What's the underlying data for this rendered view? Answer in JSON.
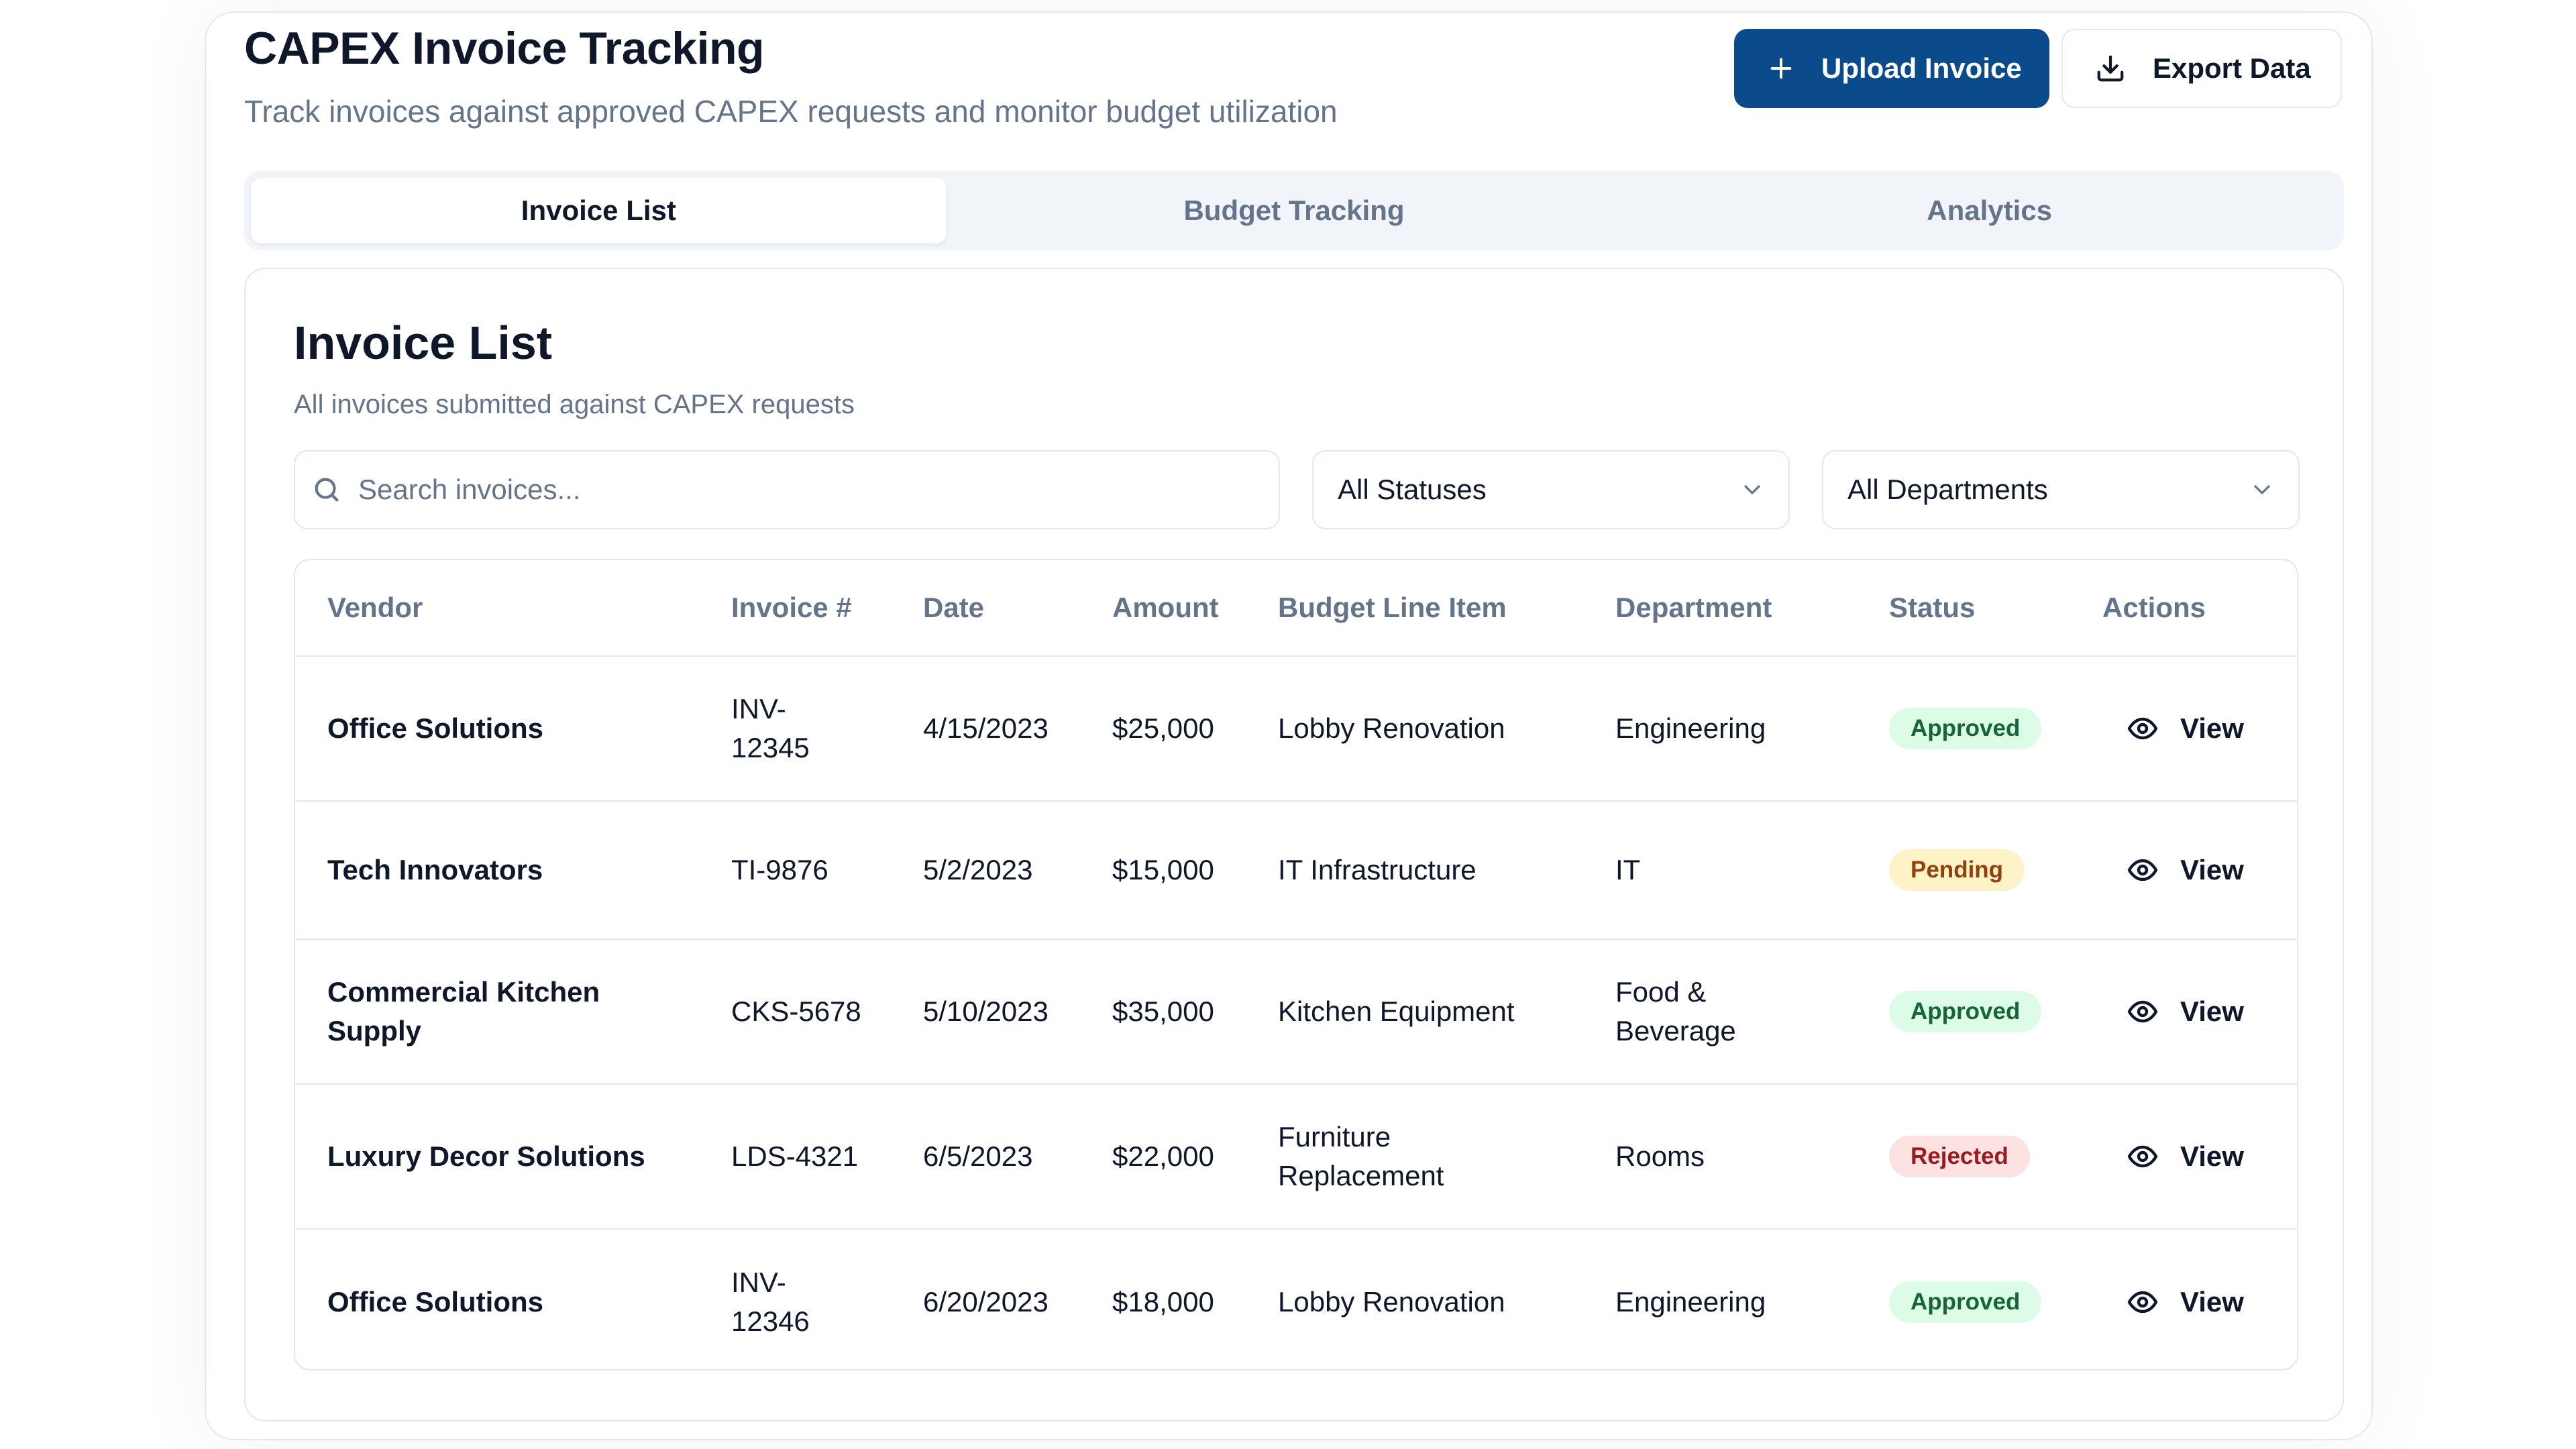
{
  "header": {
    "title": "CAPEX Invoice Tracking",
    "subtitle": "Track invoices against approved CAPEX requests and monitor budget utilization",
    "upload_label": "Upload Invoice",
    "export_label": "Export Data"
  },
  "tabs": [
    {
      "label": "Invoice List",
      "active": true
    },
    {
      "label": "Budget Tracking",
      "active": false
    },
    {
      "label": "Analytics",
      "active": false
    }
  ],
  "card": {
    "title": "Invoice List",
    "subtitle": "All invoices submitted against CAPEX requests"
  },
  "filters": {
    "search_placeholder": "Search invoices...",
    "status_value": "All Statuses",
    "department_value": "All Departments"
  },
  "table": {
    "columns": [
      "Vendor",
      "Invoice #",
      "Date",
      "Amount",
      "Budget Line Item",
      "Department",
      "Status",
      "Actions"
    ],
    "rows": [
      {
        "vendor": "Office Solutions",
        "invoice": "INV-\n12345",
        "date": "4/15/2023",
        "amount": "$25,000",
        "budget_line_item": "Lobby Renovation",
        "department": "Engineering",
        "status": "Approved",
        "action": "View"
      },
      {
        "vendor": "Tech Innovators",
        "invoice": "TI-9876",
        "date": "5/2/2023",
        "amount": "$15,000",
        "budget_line_item": "IT Infrastructure",
        "department": "IT",
        "status": "Pending",
        "action": "View"
      },
      {
        "vendor": "Commercial Kitchen\nSupply",
        "invoice": "CKS-5678",
        "date": "5/10/2023",
        "amount": "$35,000",
        "budget_line_item": "Kitchen Equipment",
        "department": "Food &\nBeverage",
        "status": "Approved",
        "action": "View"
      },
      {
        "vendor": "Luxury Decor Solutions",
        "invoice": "LDS-4321",
        "date": "6/5/2023",
        "amount": "$22,000",
        "budget_line_item": "Furniture\nReplacement",
        "department": "Rooms",
        "status": "Rejected",
        "action": "View"
      },
      {
        "vendor": "Office Solutions",
        "invoice": "INV-\n12346",
        "date": "6/20/2023",
        "amount": "$18,000",
        "budget_line_item": "Lobby Renovation",
        "department": "Engineering",
        "status": "Approved",
        "action": "View"
      }
    ]
  },
  "icons": {
    "upload": "plus-icon",
    "export": "download-icon",
    "search": "search-icon",
    "dropdown": "chevron-down-icon",
    "view": "eye-icon"
  },
  "colors": {
    "primary": "#0b4a8b",
    "approved_bg": "#dcfce7",
    "approved_text": "#166534",
    "pending_bg": "#fef3c7",
    "pending_text": "#92400e",
    "rejected_bg": "#fee2e2",
    "rejected_text": "#991b1b"
  }
}
